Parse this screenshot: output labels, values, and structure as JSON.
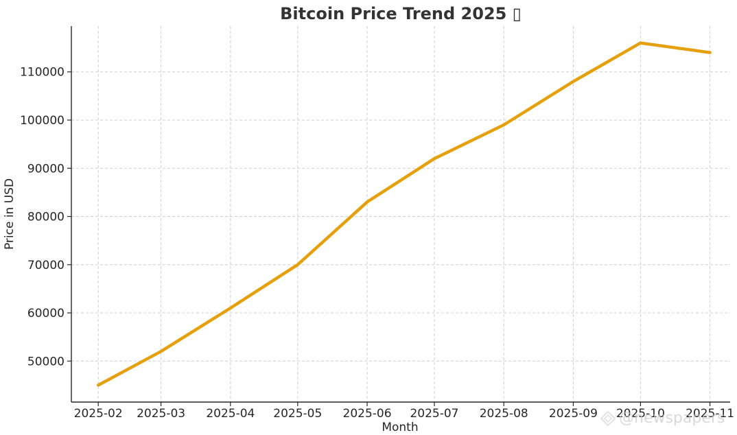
{
  "chart_data": {
    "type": "line",
    "title": "Bitcoin Price Trend 2025 ▯",
    "xlabel": "Month",
    "ylabel": "Price in USD",
    "x": [
      "2025-02-01",
      "2025-03-01",
      "2025-04-01",
      "2025-05-01",
      "2025-06-01",
      "2025-07-01",
      "2025-08-01",
      "2025-09-01",
      "2025-10-01",
      "2025-11-01"
    ],
    "x_tick_labels": [
      "2025-02",
      "2025-03",
      "2025-04",
      "2025-05",
      "2025-06",
      "2025-07",
      "2025-08",
      "2025-09",
      "2025-10",
      "2025-11"
    ],
    "series": [
      {
        "values": [
          45000,
          52000,
          61000,
          70000,
          83000,
          92000,
          99000,
          108000,
          116000,
          114000
        ],
        "color": "#E6A00B"
      }
    ],
    "y_ticks": [
      50000,
      60000,
      70000,
      80000,
      90000,
      100000,
      110000
    ],
    "ylim": [
      41500,
      119500
    ],
    "xlim": [
      "2025-01-20",
      "2025-11-10"
    ],
    "grid": true,
    "legend": "none"
  },
  "watermark": {
    "text": "@newspapers"
  }
}
